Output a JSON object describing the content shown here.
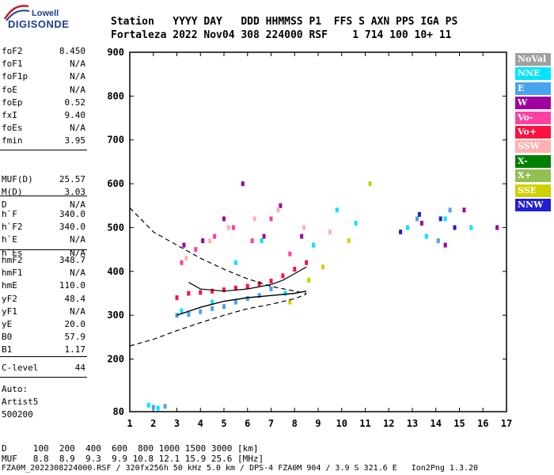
{
  "logo": {
    "top": "Lowell",
    "main": "DIGISONDE"
  },
  "header": {
    "line1": "Station   YYYY DAY   DDD HHMMSS P1  FFS S AXN PPS IGA PS",
    "line2": "Fortaleza 2022 Nov04 308 224000 RSF    1 714 100 10+ 11"
  },
  "params_group1": [
    {
      "name": "foF2",
      "value": "8.450"
    },
    {
      "name": "foF1",
      "value": "N/A"
    },
    {
      "name": "foF1p",
      "value": "N/A"
    },
    {
      "name": "foE",
      "value": "N/A"
    },
    {
      "name": "foEp",
      "value": "0.52"
    },
    {
      "name": "fxI",
      "value": "9.40"
    },
    {
      "name": "foEs",
      "value": "N/A"
    },
    {
      "name": "fmin",
      "value": "3.95"
    }
  ],
  "params_group2": [
    {
      "name": "MUF(D)",
      "value": "25.57"
    },
    {
      "name": "M(D)",
      "value": "3.03"
    },
    {
      "name": "D",
      "value": "N/A"
    }
  ],
  "params_group3": [
    {
      "name": "h`F",
      "value": "340.0"
    },
    {
      "name": "h`F2",
      "value": "340.0"
    },
    {
      "name": "h`E",
      "value": "N/A"
    },
    {
      "name": "h`Es",
      "value": "N/A"
    }
  ],
  "params_group4": [
    {
      "name": "hmF2",
      "value": "348.7"
    },
    {
      "name": "hmF1",
      "value": "N/A"
    },
    {
      "name": "hmE",
      "value": "110.0"
    },
    {
      "name": "yF2",
      "value": "48.4"
    },
    {
      "name": "yF1",
      "value": "N/A"
    },
    {
      "name": "yE",
      "value": "20.0"
    },
    {
      "name": "B0",
      "value": "57.9"
    },
    {
      "name": "B1",
      "value": "1.17"
    }
  ],
  "params_group5": [
    {
      "name": "C-level",
      "value": "44"
    }
  ],
  "auto": {
    "line1": "Auto:",
    "line2": "Artist5",
    "line3": "500200"
  },
  "legend": [
    {
      "label": "NoVal",
      "color": "#a0a0a0"
    },
    {
      "label": "NNE",
      "color": "#00e5ff"
    },
    {
      "label": "E",
      "color": "#4aa3f0"
    },
    {
      "label": "W",
      "color": "#a000a0"
    },
    {
      "label": "Vo-",
      "color": "#ff40a0"
    },
    {
      "label": "Vo+",
      "color": "#ff1040"
    },
    {
      "label": "SSW",
      "color": "#ffb0b0"
    },
    {
      "label": "X-",
      "color": "#008000"
    },
    {
      "label": "X+",
      "color": "#90c050"
    },
    {
      "label": "SSE",
      "color": "#d0d000"
    },
    {
      "label": "NNW",
      "color": "#2020d0"
    }
  ],
  "footer": {
    "line1": "D     100  200  400  600  800 1000 1500 3000 [km]",
    "line2": "MUF   8.8  8.9  9.3  9.9 10.8 12.1 15.9 25.6 [MHz]",
    "line3": "FZA0M_2022308224000.RSF / 320fx256h 50 kHz 5.0 km / DPS-4 FZA0M 904 / 3.9 S 321.6 E   Ion2Png 1.3.20"
  },
  "chart_data": {
    "type": "scatter",
    "title": "",
    "xlabel": "",
    "ylabel": "",
    "xlim": [
      1,
      17
    ],
    "ylim": [
      80,
      900
    ],
    "x_ticks": [
      1,
      2,
      3,
      4,
      5,
      6,
      7,
      8,
      9,
      10,
      11,
      12,
      13,
      14,
      15,
      16,
      17
    ],
    "y_ticks": [
      80,
      200,
      300,
      400,
      500,
      600,
      700,
      800,
      900
    ],
    "series": [
      {
        "name": "NNE",
        "color": "#00e5ff",
        "x": [
          1.8,
          2.2,
          3.2,
          4.5,
          5.5,
          6.6,
          7.6,
          8.8,
          9.8,
          10.6,
          12.8,
          13.6,
          14.4,
          15.5
        ],
        "y": [
          95,
          88,
          310,
          330,
          420,
          470,
          350,
          460,
          540,
          510,
          500,
          480,
          520,
          500
        ]
      },
      {
        "name": "E",
        "color": "#4aa3f0",
        "x": [
          2.0,
          2.5,
          3.0,
          3.5,
          4.0,
          4.5,
          5.0,
          5.5,
          6.0,
          6.5,
          7.0,
          13.2,
          14.1,
          14.6
        ],
        "y": [
          90,
          92,
          300,
          302,
          308,
          315,
          320,
          330,
          338,
          345,
          360,
          520,
          470,
          540
        ]
      },
      {
        "name": "W",
        "color": "#a000a0",
        "x": [
          3.3,
          4.1,
          5.0,
          5.8,
          6.7,
          7.4,
          8.3,
          13.4,
          14.4,
          15.2,
          16.6
        ],
        "y": [
          460,
          470,
          520,
          600,
          480,
          550,
          480,
          510,
          460,
          540,
          500
        ]
      },
      {
        "name": "Vo-",
        "color": "#ff40a0",
        "x": [
          3.2,
          3.8,
          4.6,
          5.4,
          6.2,
          7.0,
          7.8
        ],
        "y": [
          420,
          450,
          480,
          500,
          470,
          520,
          440
        ]
      },
      {
        "name": "Vo+",
        "color": "#ff1040",
        "x": [
          3.0,
          3.5,
          4.0,
          4.5,
          5.0,
          5.5,
          6.0,
          6.5,
          7.0,
          7.5,
          8.0,
          8.5
        ],
        "y": [
          340,
          350,
          352,
          355,
          358,
          362,
          366,
          372,
          378,
          390,
          405,
          420
        ]
      },
      {
        "name": "SSW",
        "color": "#ffb0b0",
        "x": [
          3.4,
          4.4,
          5.2,
          6.3,
          7.3,
          8.4,
          9.5
        ],
        "y": [
          430,
          470,
          500,
          520,
          540,
          500,
          490
        ]
      },
      {
        "name": "SSE",
        "color": "#d0d000",
        "x": [
          7.8,
          8.6,
          9.2,
          10.3,
          11.2
        ],
        "y": [
          330,
          380,
          410,
          470,
          600
        ]
      },
      {
        "name": "NNW",
        "color": "#2020d0",
        "x": [
          12.5,
          13.3,
          14.2,
          14.8
        ],
        "y": [
          490,
          530,
          520,
          500
        ]
      }
    ],
    "profile": {
      "x": [
        3.0,
        4.0,
        5.0,
        6.0,
        7.0,
        8.0,
        8.5
      ],
      "y": [
        300,
        318,
        332,
        340,
        345,
        350,
        355
      ]
    },
    "lower_dashed": {
      "x": [
        1.0,
        2.0,
        3.0,
        4.0,
        5.0,
        6.0,
        7.0,
        8.0,
        8.5
      ],
      "y": [
        230,
        245,
        265,
        283,
        300,
        315,
        325,
        338,
        348
      ]
    },
    "upper_dashed": {
      "x": [
        1.0,
        2.0,
        3.0,
        4.0,
        5.0,
        6.0,
        7.0,
        8.0,
        8.5
      ],
      "y": [
        545,
        490,
        460,
        430,
        405,
        383,
        366,
        355,
        350
      ]
    },
    "black_trace": {
      "x": [
        3.5,
        4.0,
        5.0,
        6.0,
        7.0,
        7.5,
        8.0,
        8.5
      ],
      "y": [
        375,
        360,
        355,
        360,
        370,
        380,
        395,
        410
      ]
    }
  }
}
